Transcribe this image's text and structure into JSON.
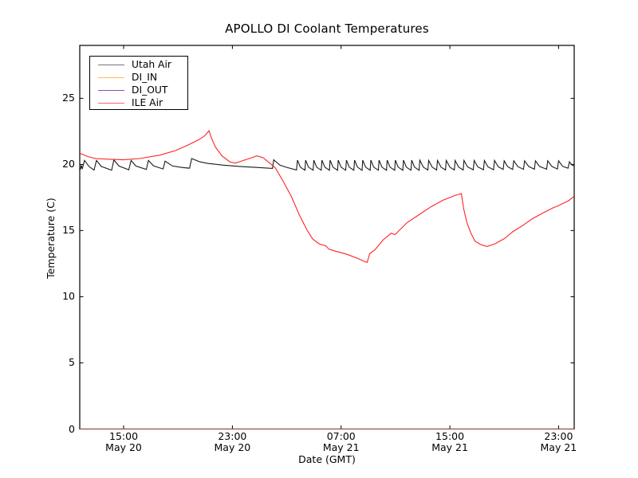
{
  "page": {
    "background": "#ffffff"
  },
  "chart_data": {
    "type": "line",
    "title": "APOLLO DI Coolant Temperatures",
    "xlabel": "Date (GMT)",
    "ylabel": "Temperature (C)",
    "grid": false,
    "legend_position": "upper left",
    "x_encoding": "hours after May 20 00:00 GMT",
    "xlim": [
      11.77,
      48.15
    ],
    "ylim": [
      0,
      29.0
    ],
    "yticks": [
      0,
      5,
      10,
      15,
      20,
      25
    ],
    "xticks": [
      {
        "t": 15,
        "time": "15:00",
        "date": "May 20"
      },
      {
        "t": 23,
        "time": "23:00",
        "date": "May 20"
      },
      {
        "t": 31,
        "time": "07:00",
        "date": "May 21"
      },
      {
        "t": 39,
        "time": "15:00",
        "date": "May 21"
      },
      {
        "t": 47,
        "time": "23:00",
        "date": "May 21"
      }
    ],
    "axis_color": "#000000",
    "series": [
      {
        "name": "Utah Air",
        "color": "#1a1a1a",
        "legend_color": "#777777",
        "opacity": 1,
        "points": [
          [
            11.77,
            19.85
          ],
          [
            11.82,
            19.62
          ],
          [
            11.88,
            19.95
          ],
          [
            11.95,
            19.65
          ],
          [
            12.12,
            20.3
          ],
          [
            12.45,
            19.85
          ],
          [
            12.82,
            19.57
          ],
          [
            13.0,
            20.3
          ],
          [
            13.35,
            19.85
          ],
          [
            14.12,
            19.56
          ],
          [
            14.28,
            20.35
          ],
          [
            14.65,
            19.88
          ],
          [
            15.38,
            19.6
          ],
          [
            15.55,
            20.3
          ],
          [
            15.9,
            19.88
          ],
          [
            16.67,
            19.62
          ],
          [
            16.82,
            20.3
          ],
          [
            17.2,
            19.9
          ],
          [
            17.9,
            19.66
          ],
          [
            18.05,
            20.25
          ],
          [
            18.6,
            19.88
          ],
          [
            19.4,
            19.76
          ],
          [
            19.85,
            19.72
          ],
          [
            20.0,
            20.45
          ],
          [
            20.6,
            20.2
          ],
          [
            21.17,
            20.08
          ],
          [
            22.34,
            19.95
          ],
          [
            23.52,
            19.85
          ],
          [
            24.69,
            19.78
          ],
          [
            25.95,
            19.7
          ],
          [
            26.04,
            20.35
          ],
          [
            26.5,
            19.95
          ],
          [
            27.0,
            19.78
          ],
          [
            27.72,
            19.58
          ],
          [
            27.79,
            20.33
          ],
          [
            28.0,
            19.8
          ],
          [
            28.34,
            19.56
          ],
          [
            28.39,
            20.33
          ],
          [
            28.6,
            19.8
          ],
          [
            28.94,
            19.56
          ],
          [
            28.99,
            20.33
          ],
          [
            29.2,
            19.8
          ],
          [
            29.54,
            19.56
          ],
          [
            29.59,
            20.33
          ],
          [
            29.8,
            19.8
          ],
          [
            30.14,
            19.56
          ],
          [
            30.19,
            20.33
          ],
          [
            30.4,
            19.8
          ],
          [
            30.74,
            19.56
          ],
          [
            30.79,
            20.33
          ],
          [
            31.0,
            19.8
          ],
          [
            31.34,
            19.56
          ],
          [
            31.39,
            20.33
          ],
          [
            31.6,
            19.8
          ],
          [
            31.94,
            19.56
          ],
          [
            31.99,
            20.33
          ],
          [
            32.2,
            19.8
          ],
          [
            32.54,
            19.56
          ],
          [
            32.59,
            20.33
          ],
          [
            32.8,
            19.8
          ],
          [
            33.14,
            19.56
          ],
          [
            33.19,
            20.33
          ],
          [
            33.4,
            19.8
          ],
          [
            33.74,
            19.56
          ],
          [
            33.79,
            20.33
          ],
          [
            34.0,
            19.8
          ],
          [
            34.34,
            19.56
          ],
          [
            34.39,
            20.33
          ],
          [
            34.6,
            19.8
          ],
          [
            34.94,
            19.56
          ],
          [
            34.99,
            20.33
          ],
          [
            35.2,
            19.8
          ],
          [
            35.54,
            19.56
          ],
          [
            35.59,
            20.33
          ],
          [
            35.8,
            19.8
          ],
          [
            36.14,
            19.56
          ],
          [
            36.19,
            20.33
          ],
          [
            36.4,
            19.8
          ],
          [
            36.74,
            19.56
          ],
          [
            36.79,
            20.33
          ],
          [
            37.05,
            19.8
          ],
          [
            37.38,
            19.58
          ],
          [
            37.44,
            20.3
          ],
          [
            37.7,
            19.8
          ],
          [
            38.03,
            19.58
          ],
          [
            38.09,
            20.3
          ],
          [
            38.35,
            19.8
          ],
          [
            38.68,
            19.58
          ],
          [
            38.74,
            20.3
          ],
          [
            39.0,
            19.8
          ],
          [
            39.33,
            19.58
          ],
          [
            39.39,
            20.3
          ],
          [
            39.65,
            19.8
          ],
          [
            39.98,
            19.58
          ],
          [
            40.04,
            20.3
          ],
          [
            40.3,
            19.82
          ],
          [
            40.72,
            19.6
          ],
          [
            40.79,
            20.3
          ],
          [
            41.05,
            19.82
          ],
          [
            41.47,
            19.6
          ],
          [
            41.54,
            20.3
          ],
          [
            41.8,
            19.82
          ],
          [
            42.22,
            19.6
          ],
          [
            42.29,
            20.3
          ],
          [
            42.55,
            19.84
          ],
          [
            42.92,
            19.62
          ],
          [
            43.0,
            20.28
          ],
          [
            43.25,
            19.84
          ],
          [
            43.62,
            19.62
          ],
          [
            43.7,
            20.28
          ],
          [
            44.0,
            19.84
          ],
          [
            44.42,
            19.63
          ],
          [
            44.5,
            20.28
          ],
          [
            44.8,
            19.85
          ],
          [
            45.22,
            19.64
          ],
          [
            45.3,
            20.28
          ],
          [
            45.6,
            19.85
          ],
          [
            46.12,
            19.64
          ],
          [
            46.2,
            20.28
          ],
          [
            46.5,
            19.86
          ],
          [
            46.92,
            19.65
          ],
          [
            47.0,
            20.28
          ],
          [
            47.3,
            19.86
          ],
          [
            47.7,
            19.72
          ],
          [
            47.8,
            20.2
          ],
          [
            48.0,
            19.95
          ],
          [
            48.15,
            19.88
          ]
        ]
      },
      {
        "name": "DI_IN",
        "color": "#ffa500",
        "legend_color": "#ffbb55",
        "opacity": 0.75,
        "points": [
          [
            11.77,
            0
          ],
          [
            48.15,
            0
          ]
        ]
      },
      {
        "name": "DI_OUT",
        "color": "#7d2d8e",
        "legend_color": "#8e4bab",
        "opacity": 0.55,
        "points": [
          [
            11.77,
            0
          ],
          [
            48.15,
            0
          ]
        ]
      },
      {
        "name": "ILE Air",
        "color": "#ff2222",
        "legend_color": "#ff6666",
        "opacity": 1,
        "points": [
          [
            11.77,
            20.85
          ],
          [
            12.35,
            20.6
          ],
          [
            12.94,
            20.45
          ],
          [
            13.83,
            20.4
          ],
          [
            15.0,
            20.35
          ],
          [
            16.17,
            20.45
          ],
          [
            17.64,
            20.7
          ],
          [
            18.82,
            21.05
          ],
          [
            19.7,
            21.45
          ],
          [
            20.58,
            21.9
          ],
          [
            21.0,
            22.2
          ],
          [
            21.28,
            22.55
          ],
          [
            21.46,
            22.0
          ],
          [
            21.76,
            21.3
          ],
          [
            22.23,
            20.65
          ],
          [
            22.81,
            20.2
          ],
          [
            23.22,
            20.1
          ],
          [
            23.81,
            20.3
          ],
          [
            24.4,
            20.5
          ],
          [
            24.81,
            20.65
          ],
          [
            25.28,
            20.5
          ],
          [
            25.75,
            20.1
          ],
          [
            26.16,
            19.75
          ],
          [
            26.75,
            18.7
          ],
          [
            27.33,
            17.6
          ],
          [
            27.92,
            16.2
          ],
          [
            28.51,
            15.0
          ],
          [
            28.92,
            14.35
          ],
          [
            29.39,
            14.0
          ],
          [
            29.86,
            13.85
          ],
          [
            30.1,
            13.6
          ],
          [
            30.57,
            13.45
          ],
          [
            31.45,
            13.2
          ],
          [
            32.33,
            12.85
          ],
          [
            32.74,
            12.65
          ],
          [
            32.92,
            12.6
          ],
          [
            33.1,
            13.25
          ],
          [
            33.5,
            13.55
          ],
          [
            34.09,
            14.3
          ],
          [
            34.68,
            14.8
          ],
          [
            34.97,
            14.7
          ],
          [
            35.85,
            15.6
          ],
          [
            36.73,
            16.2
          ],
          [
            37.61,
            16.8
          ],
          [
            38.5,
            17.3
          ],
          [
            39.38,
            17.65
          ],
          [
            39.85,
            17.8
          ],
          [
            40.03,
            16.6
          ],
          [
            40.26,
            15.6
          ],
          [
            40.55,
            14.8
          ],
          [
            40.85,
            14.2
          ],
          [
            41.26,
            13.95
          ],
          [
            41.73,
            13.8
          ],
          [
            42.32,
            14.0
          ],
          [
            43.02,
            14.4
          ],
          [
            43.61,
            14.9
          ],
          [
            44.38,
            15.4
          ],
          [
            45.08,
            15.9
          ],
          [
            45.79,
            16.3
          ],
          [
            46.55,
            16.7
          ],
          [
            47.02,
            16.9
          ],
          [
            47.31,
            17.05
          ],
          [
            47.73,
            17.25
          ],
          [
            48.15,
            17.6
          ]
        ]
      }
    ]
  }
}
